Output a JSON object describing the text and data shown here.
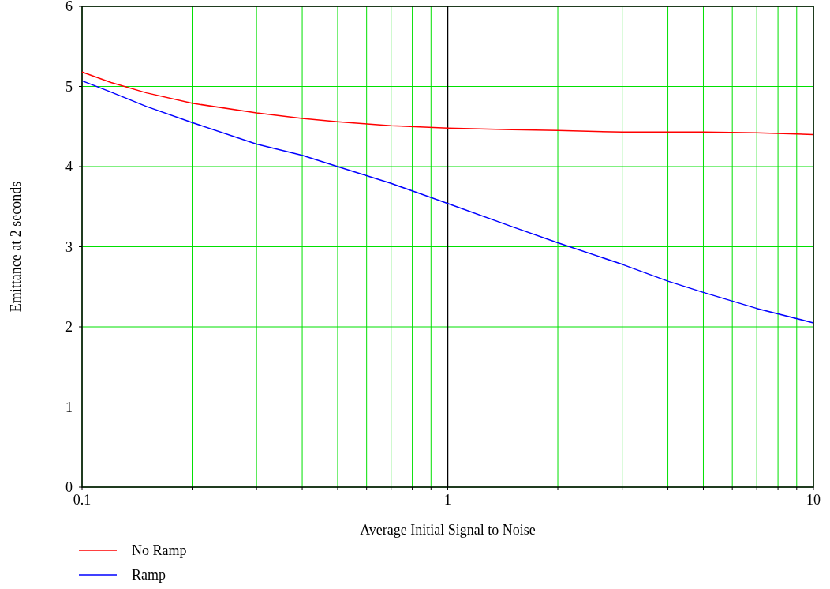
{
  "chart_data": {
    "type": "line",
    "xlabel": "Average Initial Signal to Noise",
    "ylabel": "Emittance at 2 seconds",
    "log": "x",
    "grid": true,
    "legend": "bottom left",
    "xlim": [
      0.1,
      10
    ],
    "ylim": [
      0,
      6
    ],
    "xticks": [
      0.1,
      {
        "value": 0.2,
        "label": null
      },
      {
        "value": 0.3,
        "label": null
      },
      {
        "value": 0.4,
        "label": null
      },
      {
        "value": 0.5,
        "label": null
      },
      {
        "value": 0.6,
        "label": null
      },
      {
        "value": 0.7,
        "label": null
      },
      {
        "value": 0.8,
        "label": null
      },
      {
        "value": 0.9,
        "label": null
      },
      1,
      {
        "value": 2,
        "label": null
      },
      {
        "value": 3,
        "label": null
      },
      {
        "value": 4,
        "label": null
      },
      {
        "value": 5,
        "label": null
      },
      {
        "value": 6,
        "label": null
      },
      {
        "value": 7,
        "label": null
      },
      {
        "value": 8,
        "label": null
      },
      {
        "value": 9,
        "label": null
      },
      10
    ],
    "yticks": [
      0,
      1,
      2,
      3,
      4,
      5,
      6
    ],
    "ref_lines": [
      {
        "axis": "x",
        "value": 1,
        "color": "#000000"
      }
    ],
    "x": [
      0.1,
      0.12,
      0.15,
      0.2,
      0.3,
      0.4,
      0.5,
      0.7,
      1,
      1.5,
      2,
      3,
      4,
      5,
      7,
      10
    ],
    "series": [
      {
        "name": "No Ramp",
        "color": "#ff0000",
        "values": [
          5.18,
          5.05,
          4.92,
          4.79,
          4.67,
          4.6,
          4.56,
          4.51,
          4.48,
          4.46,
          4.45,
          4.43,
          4.43,
          4.43,
          4.42,
          4.4
        ]
      },
      {
        "name": "Ramp",
        "color": "#0000ff",
        "values": [
          5.07,
          4.93,
          4.75,
          4.55,
          4.28,
          4.14,
          4.0,
          3.79,
          3.54,
          3.25,
          3.05,
          2.78,
          2.57,
          2.43,
          2.23,
          2.05
        ]
      }
    ]
  }
}
